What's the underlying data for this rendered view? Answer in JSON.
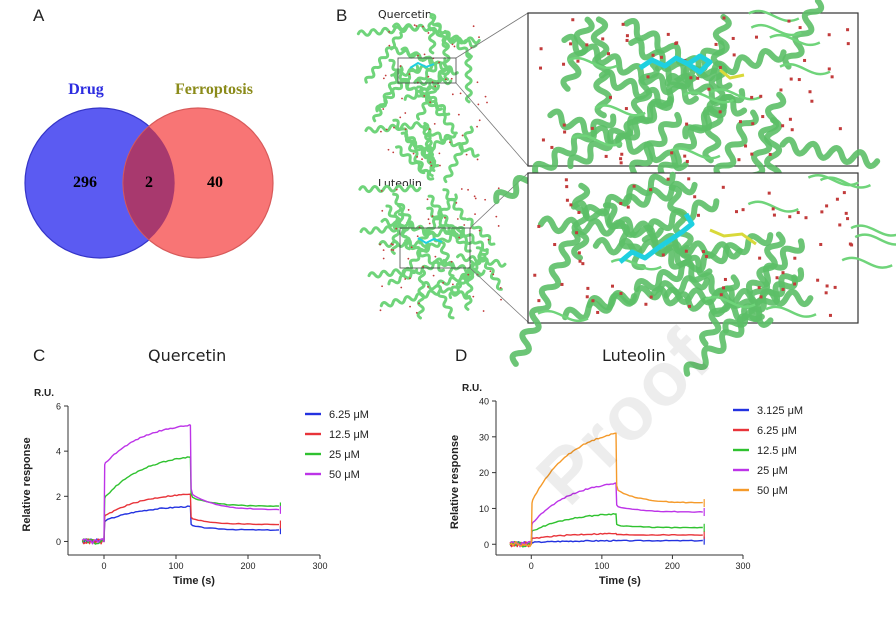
{
  "panels": {
    "A": {
      "label": "A",
      "venn": {
        "left_set": "Drug",
        "right_set": "Ferroptosis",
        "left_only": "296",
        "overlap": "2",
        "right_only": "40",
        "left_color": "#5b5bf2",
        "right_color": "#f87575",
        "overlap_color": "#a8396e",
        "left_title_color": "#2c2ce0",
        "right_title_color": "#8b8b1a"
      }
    },
    "B": {
      "label": "B",
      "top_compound": "Quercetin",
      "bottom_compound": "Luteolin",
      "protein_color": "#6fd47a",
      "ligand_color": "#1fd0e0",
      "water_color": "#c23b3b"
    },
    "C": {
      "label": "C",
      "title": "Quercetin"
    },
    "D": {
      "label": "D",
      "title": "Luteolin"
    }
  },
  "watermark": "Proof",
  "chart_data": [
    {
      "type": "line",
      "title": "Quercetin",
      "ylabel": "Relative response",
      "xlabel": "Time (s)",
      "unit_label": "R.U.",
      "xlim": [
        -50,
        300
      ],
      "ylim": [
        -0.6,
        6
      ],
      "xticks": [
        0,
        100,
        200,
        300
      ],
      "yticks": [
        0,
        2,
        4,
        6
      ],
      "injection_start": 0,
      "injection_end": 120,
      "end_time": 245,
      "series": [
        {
          "name": "6.25 μM",
          "color": "#2332e0",
          "start": 0.9,
          "peak": 1.55,
          "tail": 0.5
        },
        {
          "name": "12.5 μM",
          "color": "#e8343a",
          "start": 1.1,
          "peak": 2.1,
          "tail": 0.75
        },
        {
          "name": "25 μM",
          "color": "#2fc22f",
          "start": 1.9,
          "peak": 3.75,
          "tail": 1.55
        },
        {
          "name": "50 μM",
          "color": "#bd34e8",
          "start": 3.4,
          "peak": 5.15,
          "tail": 1.4
        }
      ]
    },
    {
      "type": "line",
      "title": "Luteolin",
      "ylabel": "Relative response",
      "xlabel": "Time (s)",
      "unit_label": "R.U.",
      "xlim": [
        -50,
        300
      ],
      "ylim": [
        -3,
        40
      ],
      "xticks": [
        0,
        100,
        200,
        300
      ],
      "yticks": [
        0,
        10,
        20,
        30,
        40
      ],
      "injection_start": 0,
      "injection_end": 120,
      "end_time": 245,
      "series": [
        {
          "name": "3.125 μM",
          "color": "#2332e0",
          "start": 0.5,
          "peak": 1.0,
          "tail": 1.0
        },
        {
          "name": "6.25 μM",
          "color": "#e8343a",
          "start": 1.5,
          "peak": 3.0,
          "tail": 2.6
        },
        {
          "name": "12.5 μM",
          "color": "#2fc22f",
          "start": 3.5,
          "peak": 8.5,
          "tail": 4.6
        },
        {
          "name": "25 μM",
          "color": "#bd34e8",
          "start": 5.5,
          "peak": 17.0,
          "tail": 9.0
        },
        {
          "name": "50 μM",
          "color": "#f59a2a",
          "start": 11.5,
          "peak": 31.0,
          "tail": 11.5
        }
      ]
    }
  ]
}
